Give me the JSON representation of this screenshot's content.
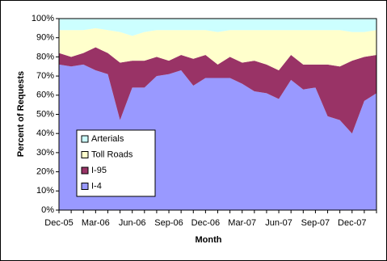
{
  "chart_data": {
    "type": "stacked_area",
    "x_label": "Month",
    "y_label": "Percent of Requests",
    "categories": [
      "Dec-05",
      null,
      null,
      "Mar-06",
      null,
      null,
      "Jun-06",
      null,
      null,
      "Sep-06",
      null,
      null,
      "Dec-06",
      null,
      null,
      "Mar-07",
      null,
      null,
      "Jun-07",
      null,
      null,
      "Sep-07",
      null,
      null,
      "Dec-07",
      null,
      null
    ],
    "series": [
      {
        "name": "I-4",
        "color": "#9999ff",
        "values": [
          76,
          75,
          76,
          73,
          71,
          47,
          64,
          64,
          70,
          71,
          73,
          65,
          69,
          69,
          69,
          66,
          62,
          61,
          58,
          68,
          63,
          64,
          49,
          47,
          40,
          57,
          61
        ]
      },
      {
        "name": "I-95",
        "color": "#993366",
        "values": [
          6,
          5,
          6,
          12,
          11,
          30,
          14,
          14,
          10,
          7,
          8,
          14,
          12,
          7,
          11,
          11,
          16,
          15,
          15,
          13,
          13,
          12,
          27,
          28,
          38,
          23,
          20
        ]
      },
      {
        "name": "Toll Roads",
        "color": "#ffffcc",
        "values": [
          12,
          14,
          12,
          10,
          12,
          16,
          13,
          15,
          14,
          16,
          13,
          15,
          13,
          17,
          14,
          17,
          16,
          18,
          21,
          13,
          18,
          18,
          18,
          19,
          15,
          13,
          13
        ]
      },
      {
        "name": "Arterials",
        "color": "#ccffff",
        "values": [
          6,
          6,
          6,
          5,
          6,
          7,
          9,
          7,
          6,
          6,
          6,
          6,
          6,
          7,
          6,
          6,
          6,
          6,
          6,
          6,
          6,
          6,
          6,
          6,
          7,
          7,
          6
        ]
      }
    ],
    "ylim": [
      0,
      100
    ],
    "yticks": [
      {
        "value": 0,
        "label": "0%"
      },
      {
        "value": 10,
        "label": "10%"
      },
      {
        "value": 20,
        "label": "20%"
      },
      {
        "value": 30,
        "label": "30%"
      },
      {
        "value": 40,
        "label": "40%"
      },
      {
        "value": 50,
        "label": "50%"
      },
      {
        "value": 60,
        "label": "60%"
      },
      {
        "value": 70,
        "label": "70%"
      },
      {
        "value": 80,
        "label": "80%"
      },
      {
        "value": 90,
        "label": "90%"
      },
      {
        "value": 100,
        "label": "100%"
      }
    ],
    "legend": "lower-left"
  }
}
